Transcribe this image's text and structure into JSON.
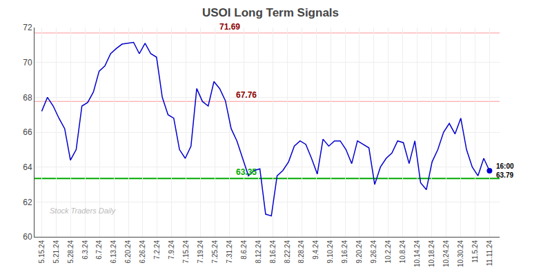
{
  "chart_data": {
    "type": "line",
    "title": "USOI Long Term Signals",
    "watermark": "Stock Traders Daily",
    "color": "#0000cc",
    "x": [
      0,
      0.3974,
      0.7949,
      1.1923,
      1.5897,
      1.9872,
      2.3846,
      2.7821,
      3.1795,
      3.5769,
      3.9744,
      4.3718,
      4.7692,
      5.1667,
      5.5641,
      5.9615,
      6.359,
      6.7564,
      7.1538,
      7.5513,
      7.9487,
      8.3462,
      8.7436,
      9.141,
      9.5385,
      9.9359,
      10.3333,
      10.7308,
      11.1282,
      11.5256,
      11.9231,
      12.3205,
      12.7179,
      13.1154,
      13.5128,
      13.9103,
      14.3077,
      14.7051,
      15.1026,
      15.5,
      15.8974,
      16.2949,
      16.6923,
      17.0897,
      17.4872,
      17.8846,
      18.2821,
      18.6795,
      19.0769,
      19.4744,
      19.8718,
      20.2692,
      20.6667,
      21.0641,
      21.4615,
      21.859,
      22.2564,
      22.6538,
      23.0513,
      23.4487,
      23.8462,
      24.2436,
      24.641,
      25.0385,
      25.4359,
      25.8333,
      26.2308,
      26.6282,
      27.0256,
      27.4231,
      27.8205,
      28.2179,
      28.6154,
      29.0128,
      29.4103,
      29.8077,
      30.2051,
      30.6026,
      31
    ],
    "values": [
      67.2,
      68.0,
      67.5,
      66.8,
      66.2,
      64.4,
      65.0,
      67.5,
      67.7,
      68.3,
      69.5,
      69.8,
      70.5,
      70.8,
      71.05,
      71.1,
      71.15,
      70.5,
      71.1,
      70.5,
      70.3,
      68.0,
      67.0,
      66.8,
      65.0,
      64.5,
      65.2,
      68.5,
      67.76,
      67.5,
      68.9,
      68.5,
      67.8,
      66.2,
      65.5,
      64.5,
      63.5,
      63.8,
      63.9,
      61.3,
      61.2,
      63.5,
      63.8,
      64.3,
      65.2,
      65.5,
      65.3,
      64.5,
      63.6,
      65.6,
      65.2,
      65.5,
      65.5,
      65.0,
      64.2,
      65.5,
      65.3,
      65.1,
      63.0,
      64.0,
      64.5,
      64.8,
      65.5,
      65.4,
      64.2,
      65.5,
      63.1,
      62.7,
      64.3,
      65.0,
      66.0,
      66.5,
      65.9,
      66.8,
      65.0,
      64.0,
      63.5,
      64.5,
      63.79
    ],
    "xlim": [
      -0.5,
      31.7
    ],
    "xticks": [
      {
        "value": 0,
        "label": "5.15.24"
      },
      {
        "value": 1,
        "label": "5.21.24"
      },
      {
        "value": 2,
        "label": "5.28.24"
      },
      {
        "value": 3,
        "label": "6.3.24"
      },
      {
        "value": 4,
        "label": "6.7.24"
      },
      {
        "value": 5,
        "label": "6.13.24"
      },
      {
        "value": 6,
        "label": "6.20.24"
      },
      {
        "value": 7,
        "label": "6.26.24"
      },
      {
        "value": 8,
        "label": "7.2.24"
      },
      {
        "value": 9,
        "label": "7.9.24"
      },
      {
        "value": 10,
        "label": "7.15.24"
      },
      {
        "value": 11,
        "label": "7.19.24"
      },
      {
        "value": 12,
        "label": "7.25.24"
      },
      {
        "value": 13,
        "label": "7.31.24"
      },
      {
        "value": 14,
        "label": "8.6.24"
      },
      {
        "value": 15,
        "label": "8.12.24"
      },
      {
        "value": 16,
        "label": "8.16.24"
      },
      {
        "value": 17,
        "label": "8.22.24"
      },
      {
        "value": 18,
        "label": "8.28.24"
      },
      {
        "value": 19,
        "label": "9.4.24"
      },
      {
        "value": 20,
        "label": "9.10.24"
      },
      {
        "value": 21,
        "label": "9.16.24"
      },
      {
        "value": 22,
        "label": "9.20.24"
      },
      {
        "value": 23,
        "label": "9.26.24"
      },
      {
        "value": 24,
        "label": "10.2.24"
      },
      {
        "value": 25,
        "label": "10.8.24"
      },
      {
        "value": 26,
        "label": "10.14.24"
      },
      {
        "value": 27,
        "label": "10.18.24"
      },
      {
        "value": 28,
        "label": "10.24.24"
      },
      {
        "value": 29,
        "label": "10.30.24"
      },
      {
        "value": 30,
        "label": "11.5.24"
      },
      {
        "value": 31,
        "label": "11.11.24"
      }
    ],
    "ylim": [
      60,
      72
    ],
    "yticks": [
      60,
      62,
      64,
      66,
      68,
      70,
      72
    ],
    "grid": true,
    "reference_lines": [
      {
        "value": 71.69,
        "color": "#ffaaaa",
        "label_color": "#8b0000"
      },
      {
        "value": 67.76,
        "color": "#ffaaaa",
        "label_color": "#8b0000"
      },
      {
        "value": 63.35,
        "color": "#00aa00",
        "label_color": "#00aa00"
      }
    ],
    "last_label": {
      "time": "16:00",
      "value": 63.79
    }
  }
}
